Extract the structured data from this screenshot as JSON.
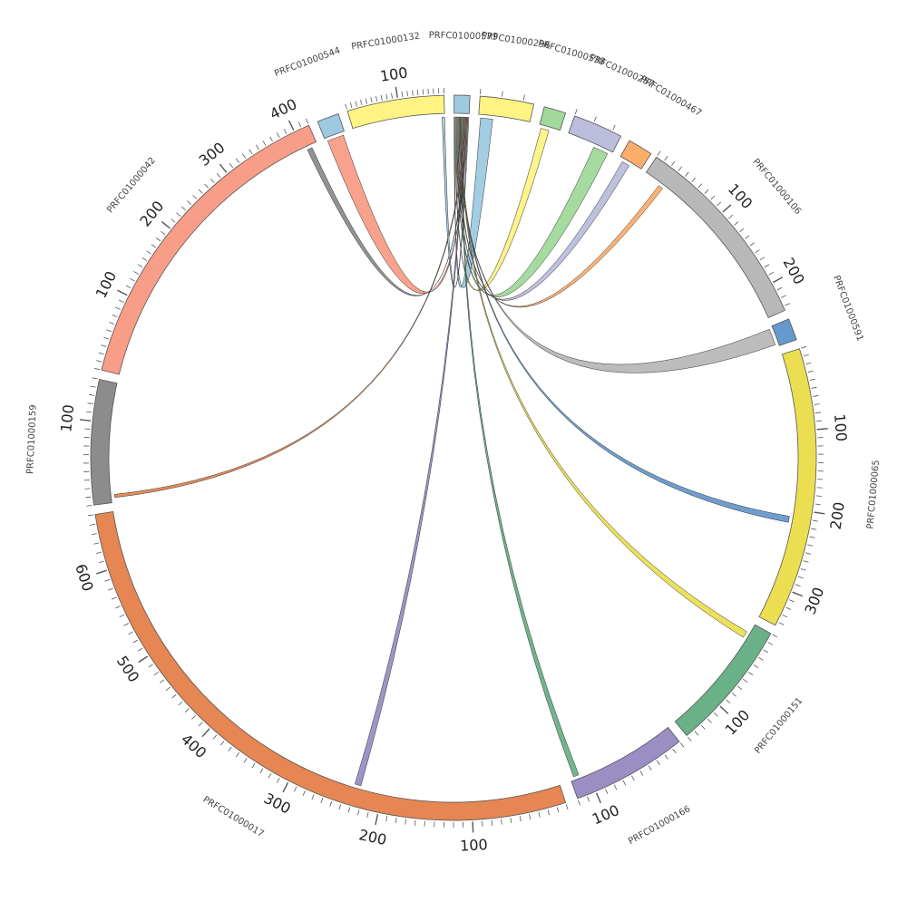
{
  "chart_data": {
    "type": "chord",
    "title": "",
    "hub": "PRFC01000579",
    "segments": [
      {
        "name": "PRFC01000579",
        "length": 8,
        "color": "#9ecae1",
        "major_ticks": []
      },
      {
        "name": "PRFC01000296",
        "length": 25,
        "color": "#fff383",
        "major_ticks": []
      },
      {
        "name": "PRFC01000538",
        "length": 10,
        "color": "#a1d99b",
        "major_ticks": []
      },
      {
        "name": "PRFC01000287",
        "length": 25,
        "color": "#bcbddc",
        "major_ticks": []
      },
      {
        "name": "PRFC01000467",
        "length": 12,
        "color": "#fdae6b",
        "major_ticks": []
      },
      {
        "name": "PRFC01000106",
        "length": 235,
        "color": "#b8b8b8",
        "major_ticks": [
          100,
          200
        ]
      },
      {
        "name": "PRFC01000591",
        "length": 10,
        "color": "#6699cc",
        "major_ticks": []
      },
      {
        "name": "PRFC01000065",
        "length": 345,
        "color": "#ebdf51",
        "major_ticks": [
          100,
          200,
          300
        ]
      },
      {
        "name": "PRFC01000151",
        "length": 150,
        "color": "#6ab187",
        "major_ticks": [
          100
        ]
      },
      {
        "name": "PRFC01000166",
        "length": 120,
        "color": "#9b8ec4",
        "major_ticks": [
          100
        ]
      },
      {
        "name": "PRFC01000017",
        "length": 660,
        "color": "#e58653",
        "major_ticks": [
          100,
          200,
          300,
          400,
          500,
          600
        ]
      },
      {
        "name": "PRFC01000159",
        "length": 150,
        "color": "#8c8c8c",
        "major_ticks": [
          100
        ]
      },
      {
        "name": "PRFC01000042",
        "length": 420,
        "color": "#f89d87",
        "major_ticks": [
          100,
          200,
          300,
          400
        ]
      },
      {
        "name": "PRFC01000544",
        "length": 10,
        "color": "#9ecae1",
        "major_ticks": []
      },
      {
        "name": "PRFC01000132",
        "length": 190,
        "color": "#fff383",
        "major_ticks": [
          100
        ]
      }
    ],
    "links": [
      {
        "source": "PRFC01000296",
        "target": "PRFC01000579",
        "source_range": [
          1,
          7
        ],
        "color": "#9ecae1"
      },
      {
        "source": "PRFC01000538",
        "target": "PRFC01000579",
        "source_range": [
          1,
          5
        ],
        "color": "#fff383"
      },
      {
        "source": "PRFC01000287",
        "target": "PRFC01000579",
        "source_range": [
          15,
          23
        ],
        "color": "#a1d99b"
      },
      {
        "source": "PRFC01000467",
        "target": "PRFC01000579",
        "source_range": [
          2,
          6
        ],
        "color": "#bcbddc"
      },
      {
        "source": "PRFC01000106",
        "target": "PRFC01000579",
        "source_range": [
          22,
          28
        ],
        "color": "#fdae6b"
      },
      {
        "source": "PRFC01000591",
        "target": "PRFC01000579",
        "source_range": [
          1,
          9
        ],
        "color": "#b8b8b8"
      },
      {
        "source": "PRFC01000065",
        "target": "PRFC01000579",
        "source_range": [
          210,
          218
        ],
        "color": "#6699cc"
      },
      {
        "source": "PRFC01000151",
        "target": "PRFC01000579",
        "source_range": [
          12,
          20
        ],
        "color": "#ebdf51"
      },
      {
        "source": "PRFC01000166",
        "target": "PRFC01000579",
        "source_range": [
          110,
          116
        ],
        "color": "#6ab187"
      },
      {
        "source": "PRFC01000017",
        "target": "PRFC01000579",
        "source_range": [
          225,
          232
        ],
        "color": "#9b8ec4"
      },
      {
        "source": "PRFC01000159",
        "target": "PRFC01000579",
        "source_range": [
          6,
          10
        ],
        "color": "#e58653"
      },
      {
        "source": "PRFC01000042",
        "target": "PRFC01000579",
        "source_range": [
          405,
          412
        ],
        "color": "#8c8c8c"
      },
      {
        "source": "PRFC01000544",
        "target": "PRFC01000579",
        "source_range": [
          1,
          9
        ],
        "color": "#f89d87"
      },
      {
        "source": "PRFC01000132",
        "target": "PRFC01000579",
        "source_range": [
          185,
          190
        ],
        "color": "#9ecae1"
      }
    ]
  }
}
